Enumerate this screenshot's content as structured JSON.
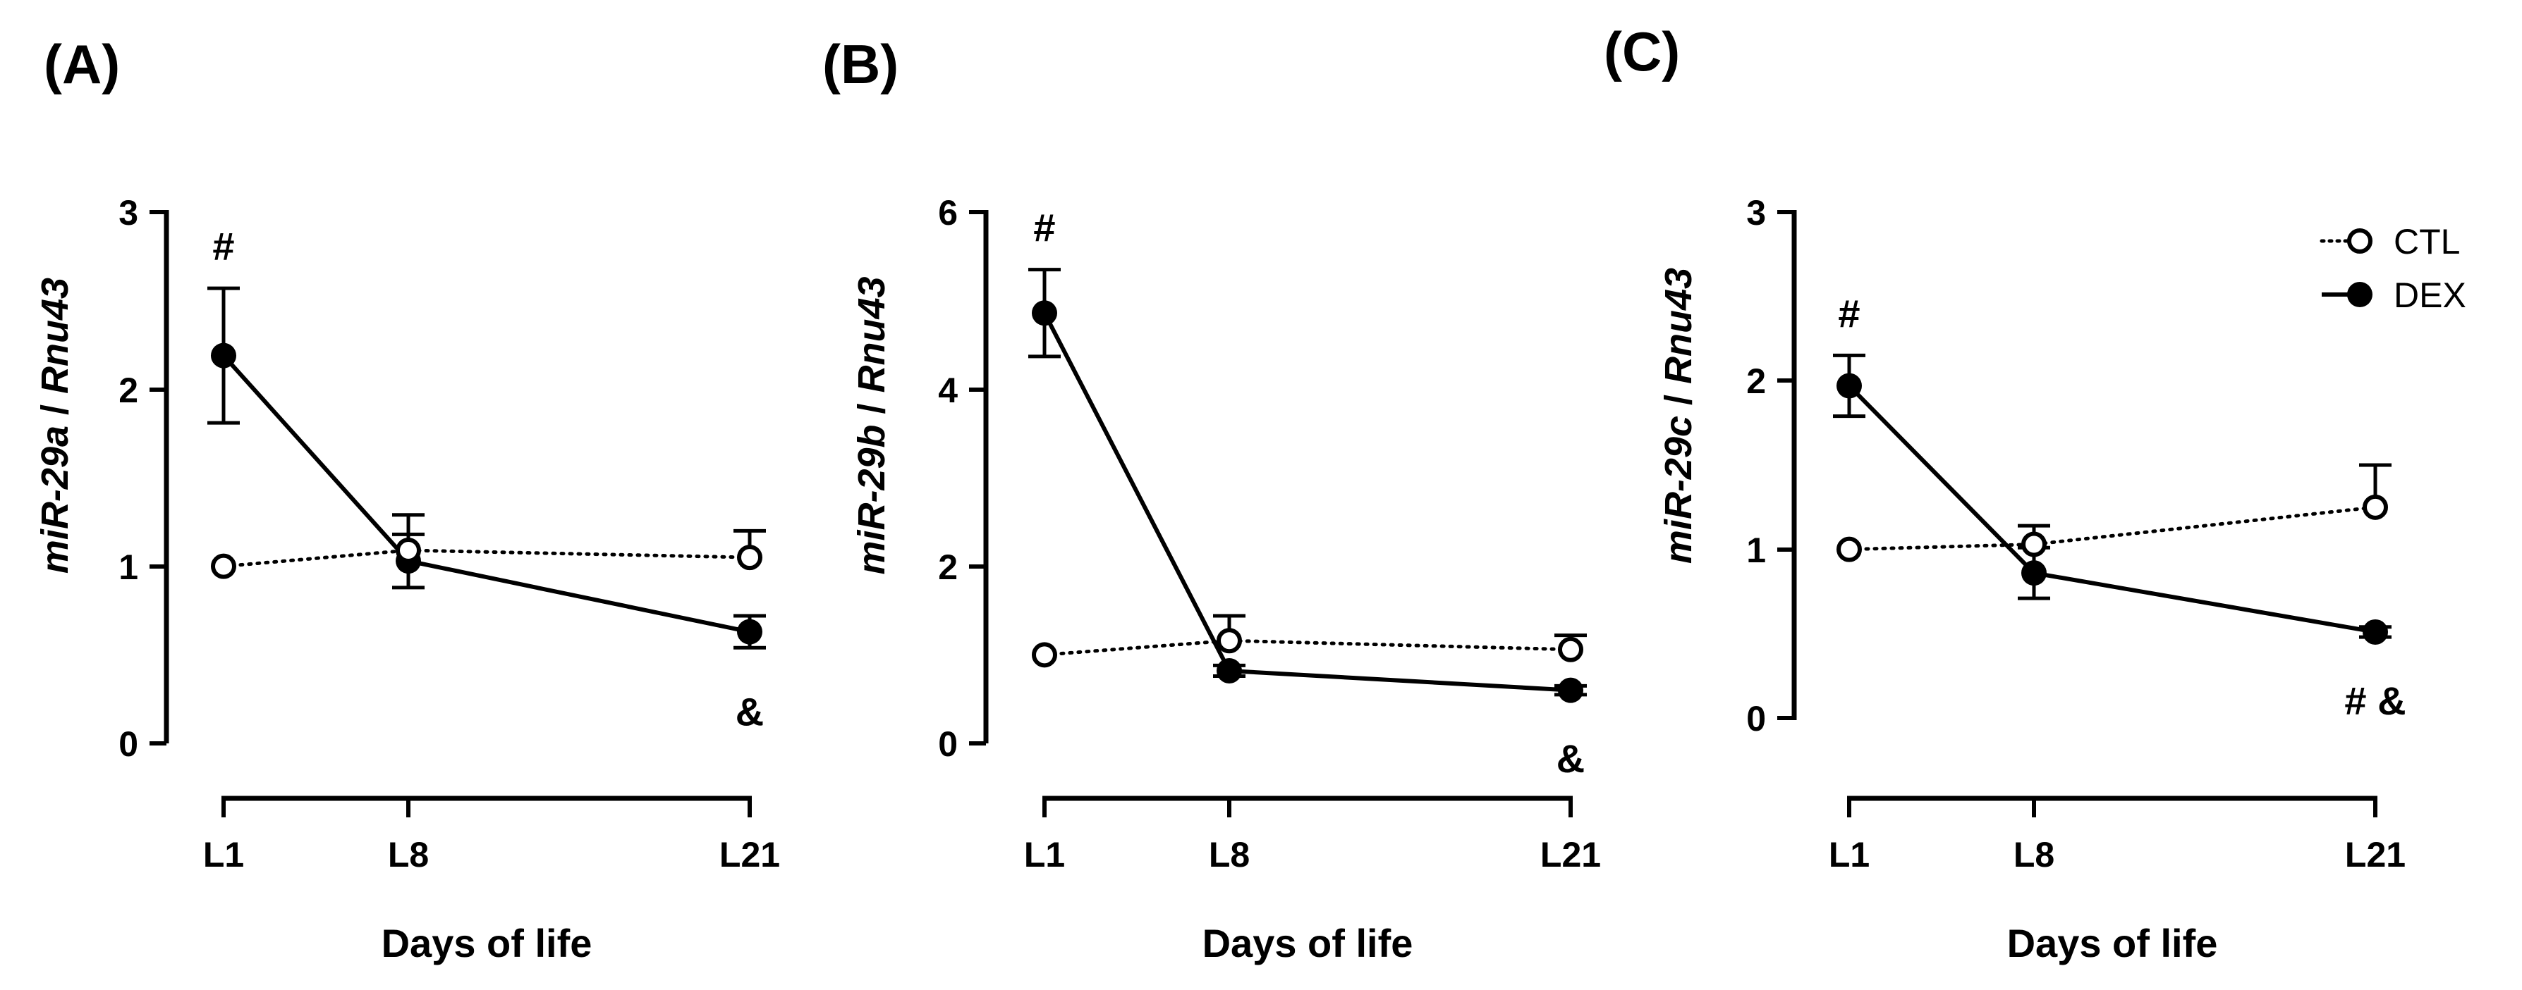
{
  "figure": {
    "xlabel": "Days of life",
    "categories": [
      "L1",
      "L8",
      "L21"
    ],
    "legend": {
      "position": "top-right of panel C",
      "entries": [
        {
          "label": "CTL",
          "style": "open circle, dotted line"
        },
        {
          "label": "DEX",
          "style": "filled circle, solid line"
        }
      ]
    },
    "colors": {
      "ink": "#000000",
      "background": "#ffffff"
    }
  },
  "chart_data": [
    {
      "type": "line",
      "panel_label": "(A)",
      "title": "",
      "ylabel_gene": "miR-29a",
      "ylabel_ref": "Rnu43",
      "xlabel": "Days of life",
      "categories": [
        "L1",
        "L8",
        "L21"
      ],
      "ylim": [
        0,
        3
      ],
      "yticks": [
        0,
        1,
        2,
        3
      ],
      "series": [
        {
          "name": "CTL",
          "values": [
            1.0,
            1.09,
            1.05
          ],
          "errors": [
            null,
            0.2,
            0.15
          ]
        },
        {
          "name": "DEX",
          "values": [
            2.19,
            1.03,
            0.63
          ],
          "errors": [
            0.38,
            0.15,
            0.09
          ]
        }
      ],
      "annotations": [
        {
          "category": "L1",
          "text": "#",
          "placement": "above"
        },
        {
          "category": "L21",
          "text": "&",
          "placement": "below"
        }
      ]
    },
    {
      "type": "line",
      "panel_label": "(B)",
      "title": "",
      "ylabel_gene": "miR-29b",
      "ylabel_ref": "Rnu43",
      "xlabel": "Days of life",
      "categories": [
        "L1",
        "L8",
        "L21"
      ],
      "ylim": [
        0,
        6
      ],
      "yticks": [
        0,
        2,
        4,
        6
      ],
      "series": [
        {
          "name": "CTL",
          "values": [
            1.0,
            1.16,
            1.06
          ],
          "errors": [
            null,
            0.28,
            0.16
          ]
        },
        {
          "name": "DEX",
          "values": [
            4.86,
            0.82,
            0.6
          ],
          "errors": [
            0.49,
            0.06,
            0.05
          ]
        }
      ],
      "annotations": [
        {
          "category": "L1",
          "text": "#",
          "placement": "above"
        },
        {
          "category": "L21",
          "text": "&",
          "placement": "below"
        }
      ]
    },
    {
      "type": "line",
      "panel_label": "(C)",
      "title": "",
      "ylabel_gene": "miR-29c",
      "ylabel_ref": "Rnu43",
      "xlabel": "Days of life",
      "categories": [
        "L1",
        "L8",
        "L21"
      ],
      "ylim": [
        0,
        3
      ],
      "yticks": [
        0,
        1,
        2,
        3
      ],
      "series": [
        {
          "name": "CTL",
          "values": [
            1.0,
            1.03,
            1.25
          ],
          "errors": [
            null,
            0.11,
            0.25
          ]
        },
        {
          "name": "DEX",
          "values": [
            1.97,
            0.86,
            0.51
          ],
          "errors": [
            0.18,
            0.15,
            0.03
          ]
        }
      ],
      "annotations": [
        {
          "category": "L1",
          "text": "#",
          "placement": "above"
        },
        {
          "category": "L21",
          "text": "# &",
          "placement": "below"
        }
      ]
    }
  ]
}
